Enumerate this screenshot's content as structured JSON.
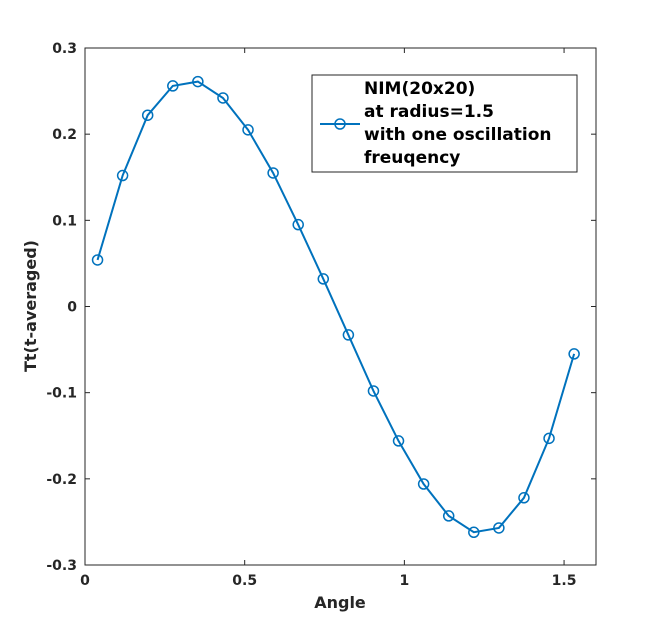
{
  "chart_data": {
    "type": "line",
    "xlabel": "Angle",
    "ylabel": "Tt(t-averaged)",
    "xlim": [
      0,
      1.6
    ],
    "ylim": [
      -0.3,
      0.3
    ],
    "x_ticks": [
      0,
      0.5,
      1,
      1.5
    ],
    "x_tick_labels": [
      "0",
      "0.5",
      "1",
      "1.5"
    ],
    "y_ticks": [
      -0.3,
      -0.2,
      -0.1,
      0,
      0.1,
      0.2,
      0.3
    ],
    "y_tick_labels": [
      "-0.3",
      "-0.2",
      "-0.1",
      "0",
      "0.1",
      "0.2",
      "0.3"
    ],
    "grid": false,
    "legend_position": "top-right",
    "series": [
      {
        "name": "NIM(20x20) at radius=1.5 with one oscillation freuqency",
        "name_lines": [
          "NIM(20x20)",
          "at radius=1.5",
          "with one oscillation",
          "freuqency"
        ],
        "color": "#0072BD",
        "marker": "circle",
        "x": [
          0.0393,
          0.1178,
          0.1963,
          0.2749,
          0.3534,
          0.432,
          0.5105,
          0.589,
          0.6676,
          0.7461,
          0.8247,
          0.9032,
          0.9817,
          1.0603,
          1.1388,
          1.2174,
          1.2959,
          1.3744,
          1.453,
          1.5315
        ],
        "y": [
          0.054,
          0.152,
          0.222,
          0.256,
          0.261,
          0.242,
          0.205,
          0.155,
          0.095,
          0.032,
          -0.033,
          -0.098,
          -0.156,
          -0.206,
          -0.243,
          -0.262,
          -0.257,
          -0.222,
          -0.153,
          -0.055
        ]
      }
    ]
  }
}
